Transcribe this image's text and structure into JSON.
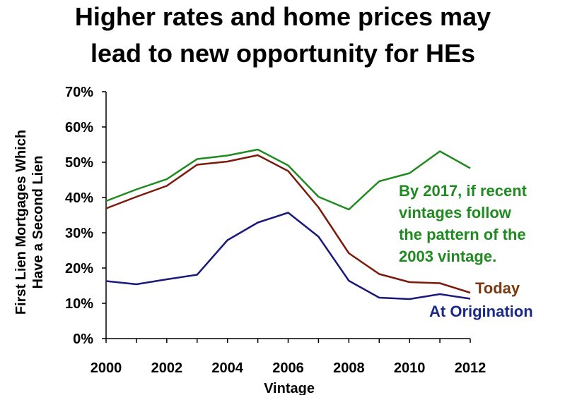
{
  "chart_data": {
    "type": "line",
    "title_lines": [
      "Higher rates and home prices may",
      "lead to new opportunity for HEs"
    ],
    "xlabel": "Vintage",
    "ylabel_lines": [
      "First Lien Mortgages Which",
      "Have a Second Lien"
    ],
    "x": [
      2000,
      2001,
      2002,
      2003,
      2004,
      2005,
      2006,
      2007,
      2008,
      2009,
      2010,
      2011,
      2012
    ],
    "xlim": [
      2000,
      2012
    ],
    "x_ticks": [
      "2000",
      "2002",
      "2004",
      "2006",
      "2008",
      "2010",
      "2012"
    ],
    "ylim": [
      0,
      70
    ],
    "y_ticks": [
      "0%",
      "10%",
      "20%",
      "30%",
      "40%",
      "50%",
      "60%",
      "70%"
    ],
    "grid": false,
    "series": [
      {
        "key": "projected",
        "color": "#1f8a1f",
        "values": [
          39,
          42.3,
          45.2,
          50.9,
          51.9,
          53.6,
          49.1,
          40.2,
          36.6,
          44.6,
          46.9,
          53.1,
          48.3
        ]
      },
      {
        "name": "Today",
        "color": "#7b1a0a",
        "values": [
          36.9,
          40.2,
          43.3,
          49.3,
          50.2,
          52.0,
          47.5,
          37.2,
          24.2,
          18.3,
          16.0,
          15.7,
          13.0
        ]
      },
      {
        "name": "At Origination",
        "color": "#1a1a7a",
        "values": [
          16.3,
          15.4,
          16.8,
          18.1,
          27.9,
          32.9,
          35.7,
          28.9,
          16.4,
          11.6,
          11.2,
          12.6,
          11.3
        ]
      }
    ],
    "annotation": {
      "lines": [
        "By 2017, if recent",
        "vintages follow",
        "the pattern of the",
        "2003 vintage."
      ],
      "color": "#1f8a1f"
    },
    "labels": {
      "today": "Today",
      "today_color": "#7b3a10",
      "origination": "At Origination",
      "origination_color": "#1a2a8a"
    }
  }
}
